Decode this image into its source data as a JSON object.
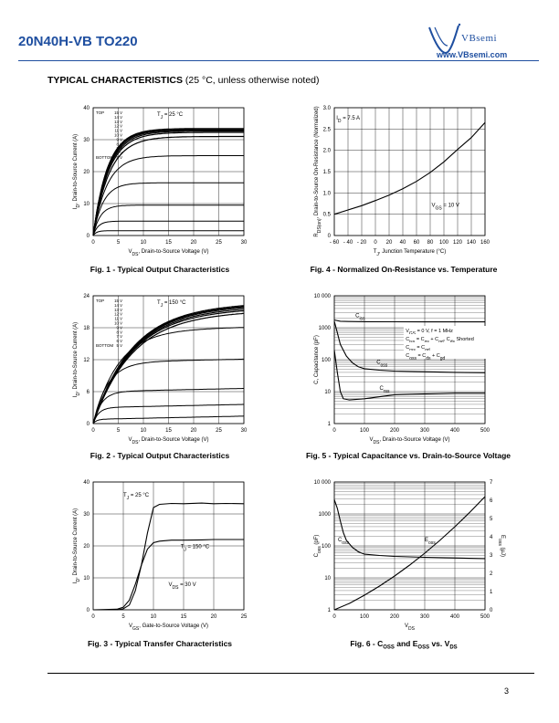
{
  "header": {
    "part_number": "20N40H-VB TO220",
    "brand": "VBsemi",
    "website": "www.VBsemi.com"
  },
  "section": {
    "title": "TYPICAL CHARACTERISTICS",
    "condition": "(25 °C, unless otherwise noted)"
  },
  "page_number": "3",
  "chart_data": [
    {
      "id": "fig1",
      "type": "line",
      "caption": "Fig. 1 - Typical Output Characteristics",
      "xlabel": "V_DS, Drain-to-Source Voltage (V)",
      "ylabel": "I_D, Drain-to-Source Current (A)",
      "xlim": [
        0,
        30
      ],
      "ylim": [
        0,
        40
      ],
      "xticks": [
        "0",
        "5",
        "10",
        "15",
        "20",
        "25",
        "30"
      ],
      "yticks": [
        "0",
        "10",
        "20",
        "30",
        "40"
      ],
      "annotation": "T_J = 25 °C",
      "legend_top": "TOP",
      "legend_bottom": "BOTTOM",
      "vgs_labels": [
        "15 V",
        "14 V",
        "13 V",
        "12 V",
        "11 V",
        "10 V",
        "9 V",
        "8 V",
        "7 V",
        "6 V",
        "5 V"
      ],
      "series": [
        {
          "sat": 33.5,
          "k": 0.35
        },
        {
          "sat": 33.2,
          "k": 0.35
        },
        {
          "sat": 33.0,
          "k": 0.34
        },
        {
          "sat": 32.7,
          "k": 0.33
        },
        {
          "sat": 32.3,
          "k": 0.32
        },
        {
          "sat": 31.0,
          "k": 0.31
        },
        {
          "sat": 25.0,
          "k": 0.36
        },
        {
          "sat": 16.5,
          "k": 0.5
        },
        {
          "sat": 9.5,
          "k": 0.7
        },
        {
          "sat": 4.5,
          "k": 1.0
        },
        {
          "sat": 1.5,
          "k": 1.5
        }
      ]
    },
    {
      "id": "fig2",
      "type": "line",
      "caption": "Fig. 2 - Typical Output Characteristics",
      "xlabel": "V_DS, Drain-to-Source Voltage (V)",
      "ylabel": "I_D, Drain-to-Source Current (A)",
      "xlim": [
        0,
        30
      ],
      "ylim": [
        0,
        24
      ],
      "xticks": [
        "0",
        "5",
        "10",
        "15",
        "20",
        "25",
        "30"
      ],
      "yticks": [
        "0",
        "6",
        "12",
        "18",
        "24"
      ],
      "annotation": "T_J = 150 °C",
      "legend_top": "TOP",
      "legend_bottom": "BOTTOM",
      "vgs_labels": [
        "15 V",
        "14 V",
        "13 V",
        "12 V",
        "11 V",
        "10 V",
        "9 V",
        "8 V",
        "7 V",
        "6 V",
        "5 V"
      ],
      "series": [
        {
          "sat": 22.0,
          "k": 0.13
        },
        {
          "sat": 21.8,
          "k": 0.13
        },
        {
          "sat": 21.6,
          "k": 0.13
        },
        {
          "sat": 21.3,
          "k": 0.13
        },
        {
          "sat": 21.0,
          "k": 0.13
        },
        {
          "sat": 20.5,
          "k": 0.13
        },
        {
          "sat": 17.5,
          "k": 0.2
        },
        {
          "sat": 11.5,
          "k": 0.35
        },
        {
          "sat": 6.0,
          "k": 0.6
        },
        {
          "sat": 3.0,
          "k": 0.9
        },
        {
          "sat": 0.8,
          "k": 1.5
        }
      ]
    },
    {
      "id": "fig3",
      "type": "line",
      "caption": "Fig. 3 - Typical Transfer Characteristics",
      "xlabel": "V_GS, Gate-to-Source Voltage (V)",
      "ylabel": "I_D, Drain-to-Source Current (A)",
      "xlim": [
        0,
        25
      ],
      "ylim": [
        0,
        40
      ],
      "xticks": [
        "0",
        "5",
        "10",
        "15",
        "20",
        "25"
      ],
      "yticks": [
        "0",
        "10",
        "20",
        "30",
        "40"
      ],
      "annotations": [
        "T_J = 25 °C",
        "T_J = 150 °C",
        "V_DS = 30 V"
      ],
      "series": [
        {
          "name": "T_J = 25 °C",
          "x": [
            0,
            4,
            5,
            6,
            7,
            8,
            9,
            10,
            11,
            13,
            15,
            18,
            20,
            22,
            25
          ],
          "y": [
            0,
            0,
            0.3,
            1.5,
            6,
            14,
            24,
            32,
            33,
            33.3,
            33.2,
            33.4,
            33.2,
            33.3,
            33.2
          ]
        },
        {
          "name": "T_J = 150 °C",
          "x": [
            0,
            4,
            5,
            6,
            7,
            8,
            9,
            10,
            11,
            13,
            15,
            18,
            20,
            22,
            25
          ],
          "y": [
            0,
            0.2,
            0.8,
            3,
            8,
            14,
            19,
            21,
            21.5,
            21.8,
            21.8,
            21.9,
            22,
            22,
            22
          ]
        }
      ]
    },
    {
      "id": "fig4",
      "type": "line",
      "caption": "Fig. 4 - Normalized On-Resistance vs. Temperature",
      "xlabel": "T_J, Junction Temperature (°C)",
      "ylabel": "R_DS(on), Drain-to-Source On-Resistance (Normalized)",
      "xlim": [
        -60,
        160
      ],
      "ylim": [
        0,
        3.0
      ],
      "xticks": [
        "- 60",
        "- 40",
        "- 20",
        "0",
        "20",
        "40",
        "60",
        "80",
        "100",
        "120",
        "140",
        "160"
      ],
      "yticks": [
        "0",
        "0.5",
        "1.0",
        "1.5",
        "2.0",
        "2.5",
        "3.0"
      ],
      "annotations": [
        "I_D = 7.5 A",
        "V_GS = 10 V"
      ],
      "series": [
        {
          "x": [
            -60,
            -40,
            -20,
            0,
            20,
            40,
            60,
            80,
            100,
            120,
            140,
            160
          ],
          "y": [
            0.5,
            0.6,
            0.7,
            0.82,
            0.95,
            1.1,
            1.27,
            1.48,
            1.73,
            2.02,
            2.3,
            2.65
          ]
        }
      ]
    },
    {
      "id": "fig5",
      "type": "line",
      "caption": "Fig. 5 - Typical Capacitance vs. Drain-to-Source Voltage",
      "xlabel": "V_DS, Drain-to-Source Voltage (V)",
      "ylabel": "C, Capacitance (pF)",
      "xlim": [
        0,
        500
      ],
      "ylim": [
        1,
        10000
      ],
      "yscale": "log",
      "xticks": [
        "0",
        "100",
        "200",
        "300",
        "400",
        "500"
      ],
      "yticks": [
        "1",
        "10",
        "100",
        "1000",
        "10 000"
      ],
      "annotations": [
        "C_iss",
        "C_oss",
        "C_rss",
        "V_GS = 0 V, f = 1 MHz",
        "C_iss = C_gs + C_gd, C_ds Shorted",
        "C_rss = C_gd",
        "C_oss = C_ds + C_gd"
      ],
      "series": [
        {
          "name": "C_iss",
          "x": [
            0,
            20,
            50,
            100,
            200,
            300,
            400,
            500
          ],
          "y": [
            1750,
            1600,
            1560,
            1540,
            1530,
            1520,
            1520,
            1520
          ]
        },
        {
          "name": "C_oss",
          "x": [
            0,
            10,
            20,
            40,
            60,
            80,
            100,
            150,
            200,
            300,
            400,
            500
          ],
          "y": [
            1600,
            700,
            300,
            130,
            80,
            60,
            52,
            47,
            44,
            42,
            40,
            39
          ]
        },
        {
          "name": "C_rss",
          "x": [
            0,
            10,
            20,
            30,
            50,
            100,
            200,
            300,
            400,
            500
          ],
          "y": [
            200,
            40,
            10,
            6,
            5.5,
            6,
            8,
            8.5,
            9,
            9
          ]
        }
      ]
    },
    {
      "id": "fig6",
      "type": "line",
      "caption": "Fig. 6 - C_OSS and E_OSS vs. V_DS",
      "xlabel": "V_DS",
      "ylabel": "C_oss (pF)",
      "y2label": "E_oss (µJ)",
      "xlim": [
        0,
        500
      ],
      "ylim": [
        1,
        10000
      ],
      "yscale": "log",
      "y2lim": [
        0,
        7
      ],
      "xticks": [
        "0",
        "100",
        "200",
        "300",
        "400",
        "500"
      ],
      "yticks": [
        "1",
        "10",
        "100",
        "1000",
        "10 000"
      ],
      "y2ticks": [
        "0",
        "1",
        "2",
        "3",
        "4",
        "5",
        "6",
        "7"
      ],
      "annotations": [
        "C_oss",
        "E_oss"
      ],
      "series": [
        {
          "name": "C_oss",
          "x": [
            0,
            10,
            20,
            30,
            40,
            60,
            80,
            100,
            150,
            200,
            300,
            400,
            500
          ],
          "y": [
            2800,
            1500,
            600,
            260,
            150,
            90,
            65,
            55,
            50,
            47,
            44,
            42,
            40
          ]
        },
        {
          "name": "E_oss",
          "x": [
            0,
            50,
            100,
            150,
            200,
            250,
            300,
            350,
            400,
            450,
            500
          ],
          "y": [
            0,
            0.35,
            0.8,
            1.3,
            1.85,
            2.45,
            3.1,
            3.8,
            4.55,
            5.35,
            6.2
          ],
          "axis": "y2"
        }
      ]
    }
  ]
}
